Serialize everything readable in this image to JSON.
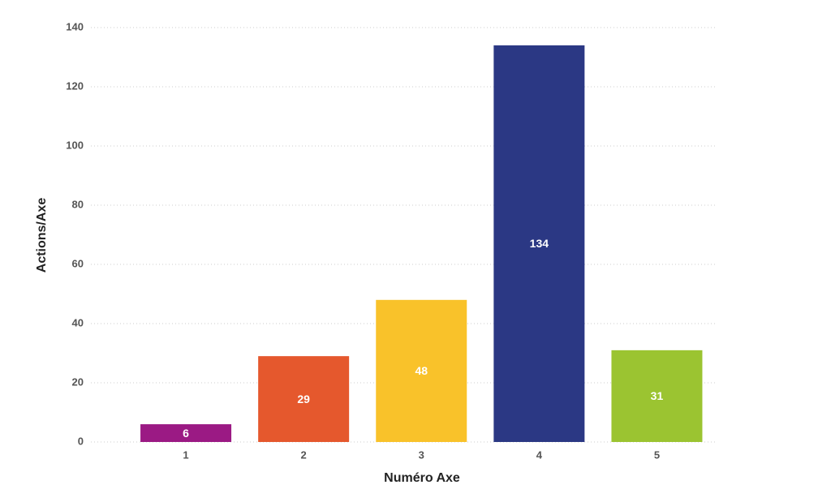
{
  "chart_data": {
    "type": "bar",
    "x_label": "Numéro Axe",
    "y_label": "Actions/Axe",
    "categories": [
      "1",
      "2",
      "3",
      "4",
      "5"
    ],
    "values": [
      6,
      29,
      48,
      134,
      31
    ],
    "colors": [
      "#9b1a84",
      "#e5582d",
      "#f9c22a",
      "#2b3884",
      "#9bc431"
    ],
    "ylim": [
      0,
      140
    ],
    "yticks": [
      0,
      20,
      40,
      60,
      80,
      100,
      120,
      140
    ],
    "grid": true
  }
}
